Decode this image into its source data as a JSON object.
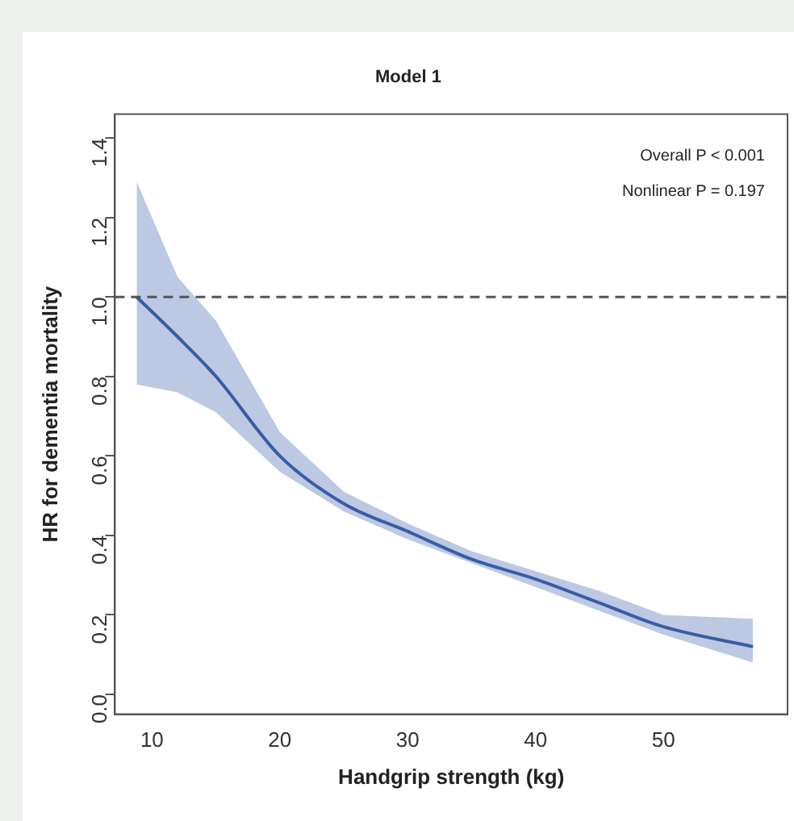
{
  "chart_data": {
    "type": "line",
    "title": "Model 1",
    "xlabel": "Handgrip strength (kg)",
    "ylabel": "HR for dementia mortality",
    "annotations": [
      "Overall P < 0.001",
      "Nonlinear P = 0.197"
    ],
    "x": [
      8.8,
      12,
      15,
      20,
      25,
      30,
      35,
      40,
      45,
      50,
      57
    ],
    "series": [
      {
        "color": "#3a5ca8",
        "values": [
          1.0,
          0.9,
          0.8,
          0.6,
          0.48,
          0.41,
          0.34,
          0.29,
          0.23,
          0.17,
          0.12
        ],
        "lower": [
          0.78,
          0.76,
          0.71,
          0.56,
          0.46,
          0.39,
          0.33,
          0.27,
          0.21,
          0.15,
          0.08
        ],
        "upper": [
          1.29,
          1.05,
          0.94,
          0.66,
          0.51,
          0.43,
          0.36,
          0.31,
          0.26,
          0.2,
          0.19
        ]
      }
    ],
    "xlim": [
      7.1,
      59.7
    ],
    "xticks": [
      10,
      20,
      30,
      40,
      50
    ],
    "ylim": [
      -0.05,
      1.46
    ],
    "yticks": [
      {
        "value": 0,
        "label": "0.0"
      },
      0.2,
      0.4,
      0.6,
      0.8,
      {
        "value": 1,
        "label": "1.0"
      },
      1.2,
      1.4
    ],
    "ref_lines": [
      {
        "axis": "y",
        "value": 1,
        "color": "#555555",
        "line_style": "dashed"
      }
    ],
    "grid": false,
    "legend": false,
    "marker": "none",
    "line_style": "solid"
  }
}
